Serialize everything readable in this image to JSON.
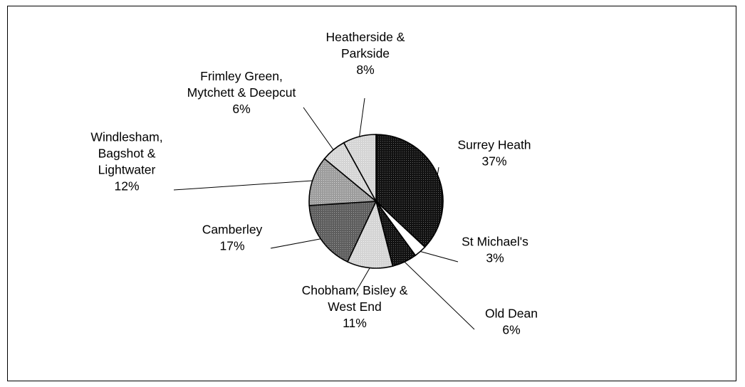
{
  "chart_data": {
    "type": "pie",
    "title": "",
    "slices": [
      {
        "label": "Surrey Heath",
        "value": 37,
        "value_label": "37%",
        "color": "#1c1c1c",
        "pattern": "dark"
      },
      {
        "label": "St Michael's",
        "value": 3,
        "value_label": "3%",
        "color": "#ffffff",
        "pattern": "none"
      },
      {
        "label": "Old Dean",
        "value": 6,
        "value_label": "6%",
        "color": "#3a3a3a",
        "pattern": "dark"
      },
      {
        "label": "Chobham, Bisley & West End",
        "value": 11,
        "value_label": "11%",
        "color": "#ebebeb",
        "pattern": "light"
      },
      {
        "label": "Camberley",
        "value": 17,
        "value_label": "17%",
        "color": "#707070",
        "pattern": "medium"
      },
      {
        "label": "Windlesham, Bagshot & Lightwater",
        "value": 12,
        "value_label": "12%",
        "color": "#a8a8a8",
        "pattern": "medium-light"
      },
      {
        "label": "Frimley Green, Mytchett & Deepcut",
        "value": 6,
        "value_label": "6%",
        "color": "#cacaca",
        "pattern": "light"
      },
      {
        "label": "Heatherside & Parkside",
        "value": 8,
        "value_label": "8%",
        "color": "#bebebe",
        "pattern": "light"
      }
    ],
    "label_lines": [
      [
        "Surrey Heath"
      ],
      [
        "St Michael's"
      ],
      [
        "Old Dean"
      ],
      [
        "Chobham, Bisley &",
        "West End"
      ],
      [
        "Camberley"
      ],
      [
        "Windlesham,",
        "Bagshot &",
        "Lightwater"
      ],
      [
        "Frimley Green,",
        "Mytchett & Deepcut"
      ],
      [
        "Heatherside &",
        "Parkside"
      ]
    ],
    "start_angle": "12 o'clock",
    "direction": "clockwise",
    "legend": "none",
    "data_labels": "outside with leader lines"
  }
}
